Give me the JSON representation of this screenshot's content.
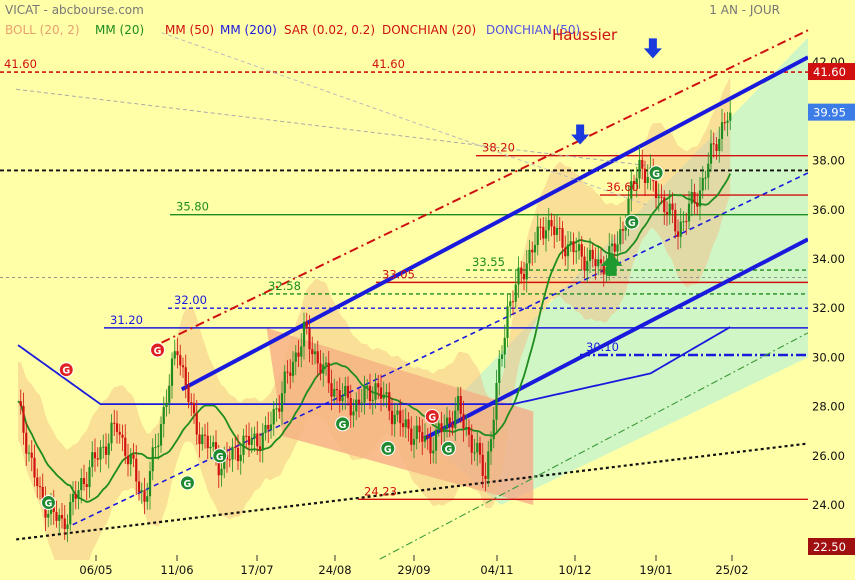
{
  "header": {
    "title": "VICAT - abcbourse.com",
    "period": "1 AN - JOUR",
    "legend": [
      {
        "label": "BOLL (20, 2)",
        "color": "#E8A070"
      },
      {
        "label": "MM (20)",
        "color": "#1E8C1E"
      },
      {
        "label": "MM (50)",
        "color": "#D01010"
      },
      {
        "label": "MM (200)",
        "color": "#1A1ADD"
      },
      {
        "label": "SAR (0.02, 0.2)",
        "color": "#D01010"
      },
      {
        "label": "DONCHIAN (20)",
        "color": "#D01010"
      },
      {
        "label": "DONCHIAN (50)",
        "color": "#5050E0"
      }
    ]
  },
  "colors": {
    "background": "#FFFFA8",
    "candle_up": "#1E8C1E",
    "candle_down": "#D01010",
    "channel": "#1A1ADD",
    "bollinger_fill": "#F5B980",
    "green_zone": "#CCF5C8",
    "red_zone": "#F5A584",
    "price_badge": "#3B7CE6",
    "top_badge": "#D01010",
    "low_badge": "#A01010"
  },
  "chart_data": {
    "type": "candlestick",
    "title": "",
    "x_ticks": [
      "06/05",
      "11/06",
      "17/07",
      "24/08",
      "29/09",
      "04/11",
      "10/12",
      "19/01",
      "25/02"
    ],
    "y_ticks": [
      24,
      26,
      28,
      30,
      32,
      34,
      36,
      38,
      40,
      42
    ],
    "y_range": [
      22.5,
      43.0
    ],
    "last_price": 39.95,
    "high_badge": 41.6,
    "low_badge": 22.5,
    "annotation": "Haussier",
    "level_labels": [
      {
        "text": "41.60",
        "value": 41.6,
        "color": "#D01010",
        "dashed": true
      },
      {
        "text": "41.60",
        "value": 41.6,
        "color": "#D01010",
        "dashed": true
      },
      {
        "text": "38.20",
        "value": 38.2,
        "color": "#D01010",
        "dashed": false
      },
      {
        "text": "36.60",
        "value": 36.6,
        "color": "#D01010",
        "dashed": false
      },
      {
        "text": "35.80",
        "value": 35.8,
        "color": "#1E8C1E",
        "dashed": false
      },
      {
        "text": "33.55",
        "value": 33.55,
        "color": "#1E8C1E",
        "dashed": true
      },
      {
        "text": "33.05",
        "value": 33.05,
        "color": "#D01010",
        "dashed": false
      },
      {
        "text": "32.58",
        "value": 32.58,
        "color": "#1E8C1E",
        "dashed": true
      },
      {
        "text": "32.00",
        "value": 32.0,
        "color": "#1A1ADD",
        "dashed": true
      },
      {
        "text": "31.20",
        "value": 31.2,
        "color": "#1A1ADD",
        "dashed": false
      },
      {
        "text": "30.10",
        "value": 30.1,
        "color": "#1A1ADD",
        "dashed": true
      },
      {
        "text": "24.23",
        "value": 24.23,
        "color": "#D01010",
        "dashed": false
      }
    ],
    "signals": [
      {
        "type": "G",
        "color": "red",
        "x": 0.082,
        "value": 29.5
      },
      {
        "type": "G",
        "color": "red",
        "x": 0.195,
        "value": 30.3
      },
      {
        "type": "G",
        "color": "red",
        "x": 0.535,
        "value": 27.6
      },
      {
        "type": "G",
        "color": "green",
        "x": 0.06,
        "value": 24.1
      },
      {
        "type": "G",
        "color": "green",
        "x": 0.232,
        "value": 24.9
      },
      {
        "type": "G",
        "color": "green",
        "x": 0.272,
        "value": 26.0
      },
      {
        "type": "G",
        "color": "green",
        "x": 0.424,
        "value": 27.3
      },
      {
        "type": "G",
        "color": "green",
        "x": 0.48,
        "value": 26.3
      },
      {
        "type": "G",
        "color": "green",
        "x": 0.555,
        "value": 26.3
      },
      {
        "type": "G",
        "color": "green",
        "x": 0.782,
        "value": 35.5
      },
      {
        "type": "G",
        "color": "green",
        "x": 0.812,
        "value": 37.5
      }
    ],
    "arrows": [
      {
        "dir": "down",
        "color": "blue",
        "x": 0.718,
        "value": 38.9
      },
      {
        "dir": "down",
        "color": "blue",
        "x": 0.808,
        "value": 42.4
      },
      {
        "dir": "up",
        "color": "green",
        "x": 0.757,
        "value": 33.8
      }
    ]
  }
}
